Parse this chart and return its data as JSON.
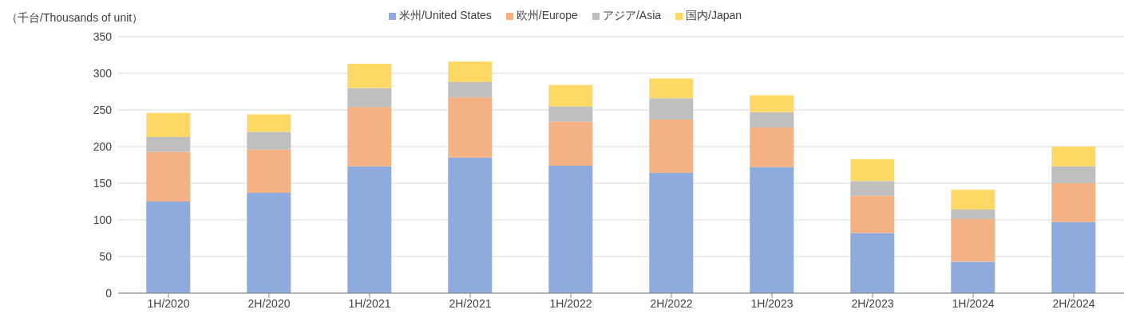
{
  "chart_data": {
    "type": "bar",
    "ylabel": "（千台/Thousands of unit）",
    "stacked": true,
    "legend": "top",
    "grid": "y",
    "categories": [
      "1H/2020",
      "2H/2020",
      "1H/2021",
      "2H/2021",
      "1H/2022",
      "2H/2022",
      "1H/2023",
      "2H/2023",
      "1H/2024",
      "2H/2024"
    ],
    "series": [
      {
        "name": "米州/United States",
        "color": "#8faadc",
        "values": [
          125,
          137,
          173,
          185,
          174,
          164,
          172,
          82,
          43,
          97
        ]
      },
      {
        "name": "欧州/Europe",
        "color": "#f4b183",
        "values": [
          68,
          59,
          81,
          82,
          60,
          73,
          54,
          51,
          58,
          53
        ]
      },
      {
        "name": "アジア/Asia",
        "color": "#bfbfbf",
        "values": [
          20,
          24,
          26,
          21,
          21,
          29,
          21,
          20,
          13,
          23
        ]
      },
      {
        "name": "国内/Japan",
        "color": "#ffd966",
        "values": [
          33,
          24,
          33,
          28,
          29,
          27,
          23,
          30,
          27,
          27
        ]
      }
    ],
    "ylim": [
      0,
      350
    ],
    "yticks": [
      0,
      50,
      100,
      150,
      200,
      250,
      300,
      350
    ]
  }
}
